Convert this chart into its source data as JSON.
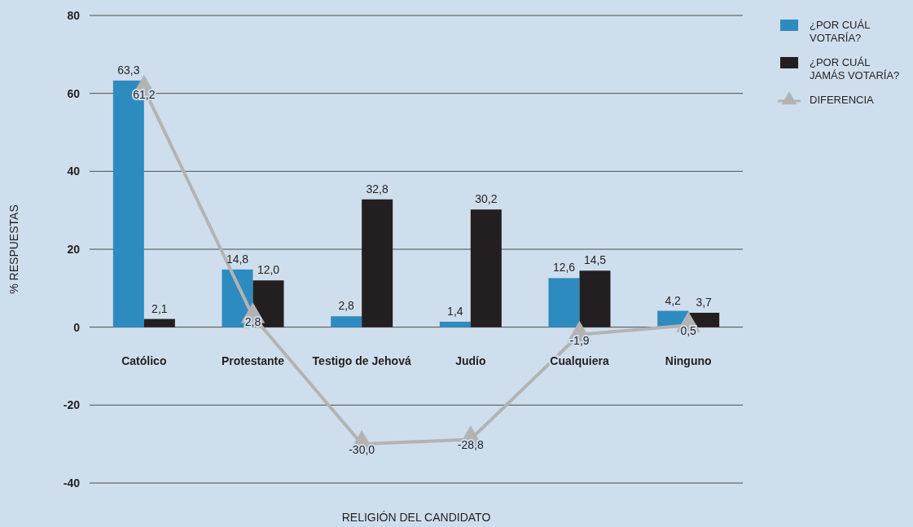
{
  "chart_data": {
    "type": "bar",
    "xlabel": "RELIGIÓN DEL CANDIDATO",
    "ylabel": "% RESPUESTAS",
    "categories": [
      "Católico",
      "Protestante",
      "Testigo de Jehová",
      "Judío",
      "Cualquiera",
      "Ninguno"
    ],
    "series": [
      {
        "name": "¿POR CUÁL VOTARÍA?",
        "color": "#2e8bc0",
        "values": [
          63.3,
          14.8,
          2.8,
          1.4,
          12.6,
          4.2
        ],
        "value_labels": [
          "63,3",
          "14,8",
          "2,8",
          "1,4",
          "12,6",
          "4,2"
        ]
      },
      {
        "name": "¿POR CUÁL JAMÁS VOTARÍA?",
        "color": "#231f20",
        "values": [
          2.1,
          12.0,
          32.8,
          30.2,
          14.5,
          3.7
        ],
        "value_labels": [
          "2,1",
          "12,0",
          "32,8",
          "30,2",
          "14,5",
          "3,7"
        ]
      },
      {
        "name": "DIFERENCIA",
        "type": "line",
        "color": "#b3b3b3",
        "marker": "triangle",
        "values": [
          61.2,
          2.8,
          -30.0,
          -28.8,
          -1.9,
          0.5
        ],
        "value_labels": [
          "61,2",
          "2,8",
          "-30,0",
          "-28,8",
          "-1,9",
          "0,5"
        ]
      }
    ],
    "ylim": [
      -40,
      80
    ],
    "yticks": [
      -40,
      -20,
      0,
      20,
      40,
      60,
      80
    ],
    "grid": "y",
    "legend": "top right"
  }
}
